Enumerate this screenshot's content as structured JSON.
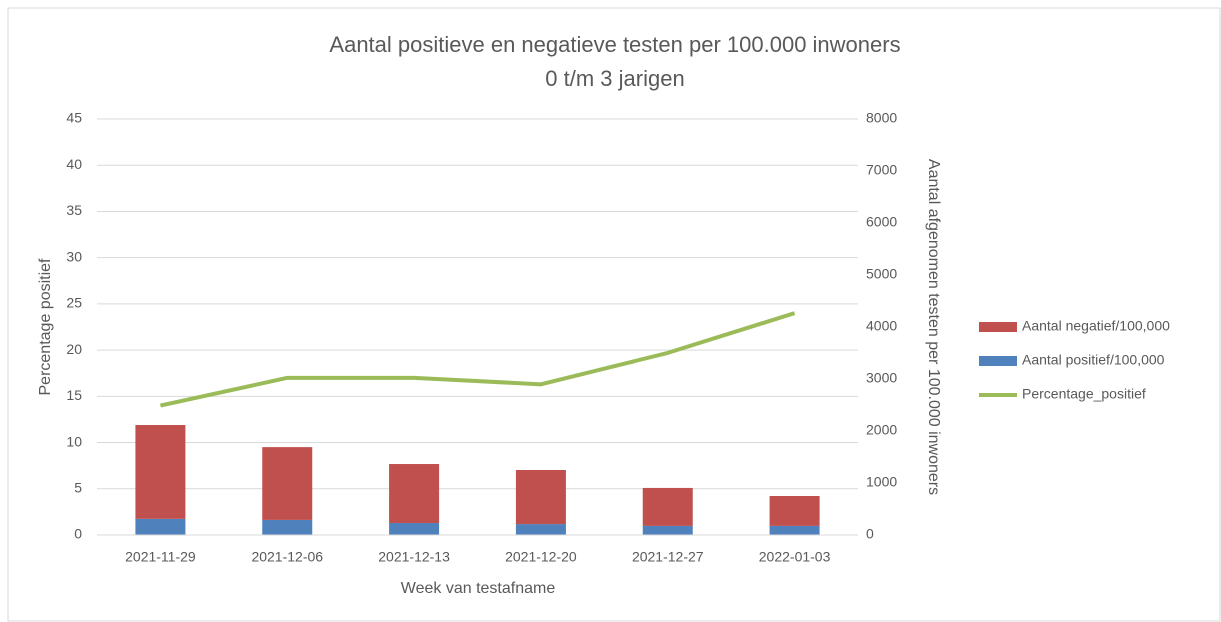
{
  "chart_data": {
    "type": "bar",
    "stacked": true,
    "title": "Aantal positieve en negatieve testen per 100.000 inwoners",
    "subtitle": "0 t/m 3 jarigen",
    "x_label": "Week van testafname",
    "y_label": "Percentage positief",
    "y2_label": "Aantal afgenomen testen per 100.000 inwoners",
    "categories": [
      "2021-11-29",
      "2021-12-06",
      "2021-12-13",
      "2021-12-20",
      "2021-12-27",
      "2022-01-03"
    ],
    "series": [
      {
        "name": "Aantal positief/100,000",
        "type": "bar",
        "axis": "y2",
        "color": "#4f81bd",
        "values": [
          310,
          290,
          230,
          210,
          175,
          175
        ]
      },
      {
        "name": "Aantal negatief/100,000",
        "type": "bar",
        "axis": "y2",
        "color": "#c0504d",
        "values": [
          1805,
          1400,
          1135,
          1040,
          730,
          575
        ]
      },
      {
        "name": "Percentage_positief",
        "type": "line",
        "axis": "y",
        "color": "#9bbb59",
        "values": [
          14,
          17,
          17,
          16.3,
          19.7,
          24
        ]
      }
    ],
    "ylim": [
      0,
      45
    ],
    "yticks": [
      0,
      5,
      10,
      15,
      20,
      25,
      30,
      35,
      40,
      45
    ],
    "y2lim": [
      0,
      8000
    ],
    "y2ticks": [
      0,
      1000,
      2000,
      3000,
      4000,
      5000,
      6000,
      7000,
      8000
    ],
    "grid": true,
    "legend": "right"
  }
}
